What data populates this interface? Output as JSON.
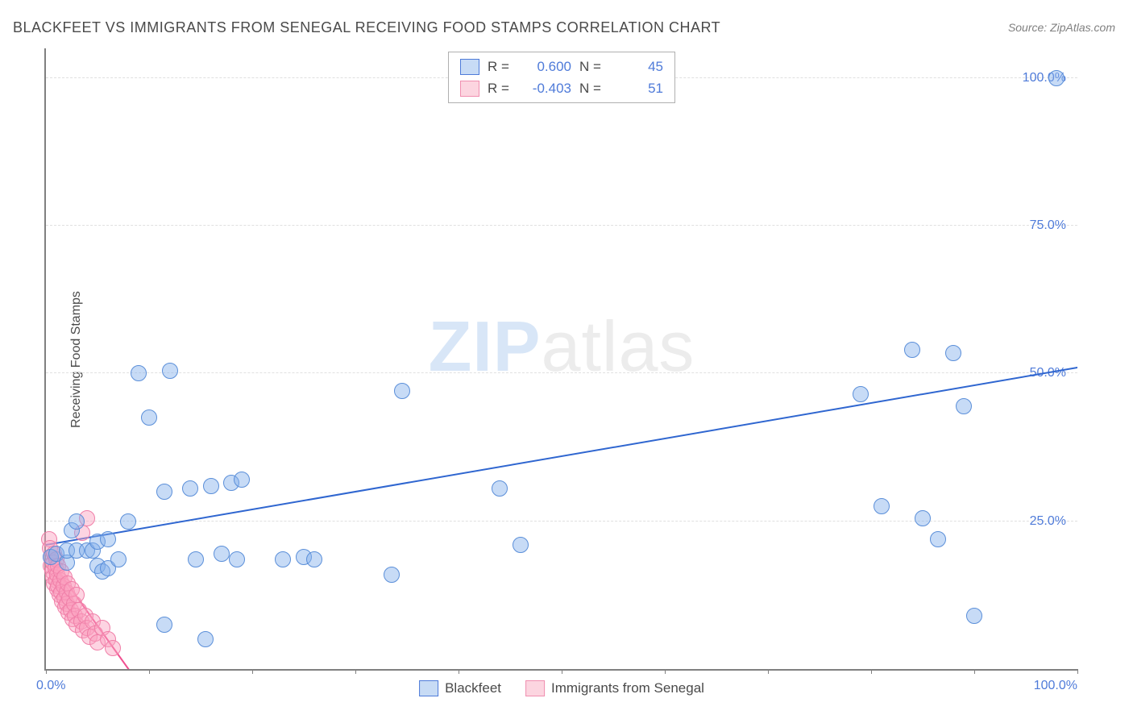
{
  "title": "BLACKFEET VS IMMIGRANTS FROM SENEGAL RECEIVING FOOD STAMPS CORRELATION CHART",
  "source_label": "Source: ZipAtlas.com",
  "y_axis_label": "Receiving Food Stamps",
  "watermark": {
    "zip": "ZIP",
    "atlas": "atlas"
  },
  "chart": {
    "type": "scatter",
    "background_color": "#ffffff",
    "grid_color": "#e0e0e0",
    "axis_color": "#808080",
    "xlim": [
      0,
      100
    ],
    "ylim": [
      0,
      105
    ],
    "x_ticks": [
      0,
      10,
      20,
      30,
      40,
      50,
      60,
      70,
      80,
      90,
      100
    ],
    "y_gridlines": [
      25,
      50,
      75,
      100
    ],
    "y_tick_labels": [
      "25.0%",
      "50.0%",
      "75.0%",
      "100.0%"
    ],
    "x_origin_label": "0.0%",
    "x_end_label": "100.0%",
    "tick_label_color": "#4f7bd9",
    "marker_radius": 9,
    "series": {
      "blue": {
        "label": "Blackfeet",
        "fill": "rgba(130,175,235,0.45)",
        "stroke": "#5b8fd9",
        "R": "0.600",
        "N": "45",
        "trend": {
          "x1": 0,
          "y1": 21,
          "x2": 100,
          "y2": 51,
          "color": "#2f66d0",
          "width": 2
        },
        "points": [
          [
            0.5,
            19
          ],
          [
            1,
            19.5
          ],
          [
            2,
            18
          ],
          [
            2,
            20
          ],
          [
            2.5,
            23.5
          ],
          [
            3,
            20
          ],
          [
            3,
            25
          ],
          [
            4,
            20
          ],
          [
            4.5,
            20
          ],
          [
            5,
            21.5
          ],
          [
            5,
            17.5
          ],
          [
            5.5,
            16.5
          ],
          [
            6,
            22
          ],
          [
            6,
            17
          ],
          [
            7,
            18.5
          ],
          [
            8,
            25
          ],
          [
            9,
            50
          ],
          [
            10,
            42.5
          ],
          [
            11.5,
            30
          ],
          [
            11.5,
            7.5
          ],
          [
            12,
            50.5
          ],
          [
            14,
            30.5
          ],
          [
            14.5,
            18.5
          ],
          [
            15.5,
            5
          ],
          [
            16,
            31
          ],
          [
            17,
            19.5
          ],
          [
            18,
            31.5
          ],
          [
            18.5,
            18.5
          ],
          [
            19,
            32
          ],
          [
            23,
            18.5
          ],
          [
            25,
            19
          ],
          [
            26,
            18.5
          ],
          [
            33.5,
            16
          ],
          [
            34.5,
            47
          ],
          [
            44,
            30.5
          ],
          [
            46,
            21
          ],
          [
            79,
            46.5
          ],
          [
            81,
            27.5
          ],
          [
            84,
            54
          ],
          [
            85,
            25.5
          ],
          [
            86.5,
            22
          ],
          [
            88,
            53.5
          ],
          [
            89,
            44.5
          ],
          [
            90,
            9
          ],
          [
            98,
            100
          ]
        ]
      },
      "pink": {
        "label": "Immigrants from Senegal",
        "fill": "rgba(250,160,190,0.45)",
        "stroke": "#f07fa8",
        "R": "-0.403",
        "N": "51",
        "trend": {
          "x1": 0,
          "y1": 19.5,
          "x2": 8,
          "y2": 0,
          "color": "#f05090",
          "width": 2
        },
        "points": [
          [
            0.3,
            22
          ],
          [
            0.4,
            20.5
          ],
          [
            0.5,
            19
          ],
          [
            0.5,
            17.5
          ],
          [
            0.6,
            16.5
          ],
          [
            0.7,
            18
          ],
          [
            0.7,
            15.5
          ],
          [
            0.8,
            19.5
          ],
          [
            0.8,
            14.5
          ],
          [
            0.9,
            17
          ],
          [
            1.0,
            15
          ],
          [
            1.0,
            18.5
          ],
          [
            1.1,
            13.5
          ],
          [
            1.1,
            16
          ],
          [
            1.2,
            14
          ],
          [
            1.2,
            17.5
          ],
          [
            1.3,
            12.5
          ],
          [
            1.4,
            15
          ],
          [
            1.5,
            13
          ],
          [
            1.5,
            16.5
          ],
          [
            1.6,
            11.5
          ],
          [
            1.7,
            14
          ],
          [
            1.8,
            12
          ],
          [
            1.8,
            15.5
          ],
          [
            1.9,
            10.5
          ],
          [
            2.0,
            13
          ],
          [
            2.0,
            11
          ],
          [
            2.1,
            14.5
          ],
          [
            2.2,
            9.5
          ],
          [
            2.3,
            12
          ],
          [
            2.4,
            10
          ],
          [
            2.5,
            13.5
          ],
          [
            2.6,
            8.5
          ],
          [
            2.7,
            11
          ],
          [
            2.8,
            9
          ],
          [
            3.0,
            12.5
          ],
          [
            3.0,
            7.5
          ],
          [
            3.2,
            10
          ],
          [
            3.4,
            8
          ],
          [
            3.5,
            23
          ],
          [
            3.6,
            6.5
          ],
          [
            3.8,
            9
          ],
          [
            4.0,
            7
          ],
          [
            4.0,
            25.5
          ],
          [
            4.2,
            5.5
          ],
          [
            4.5,
            8
          ],
          [
            4.8,
            6
          ],
          [
            5.0,
            4.5
          ],
          [
            5.5,
            7
          ],
          [
            6.0,
            5
          ],
          [
            6.5,
            3.5
          ]
        ]
      }
    }
  },
  "legend_top": {
    "r_label": "R =",
    "n_label": "N ="
  }
}
